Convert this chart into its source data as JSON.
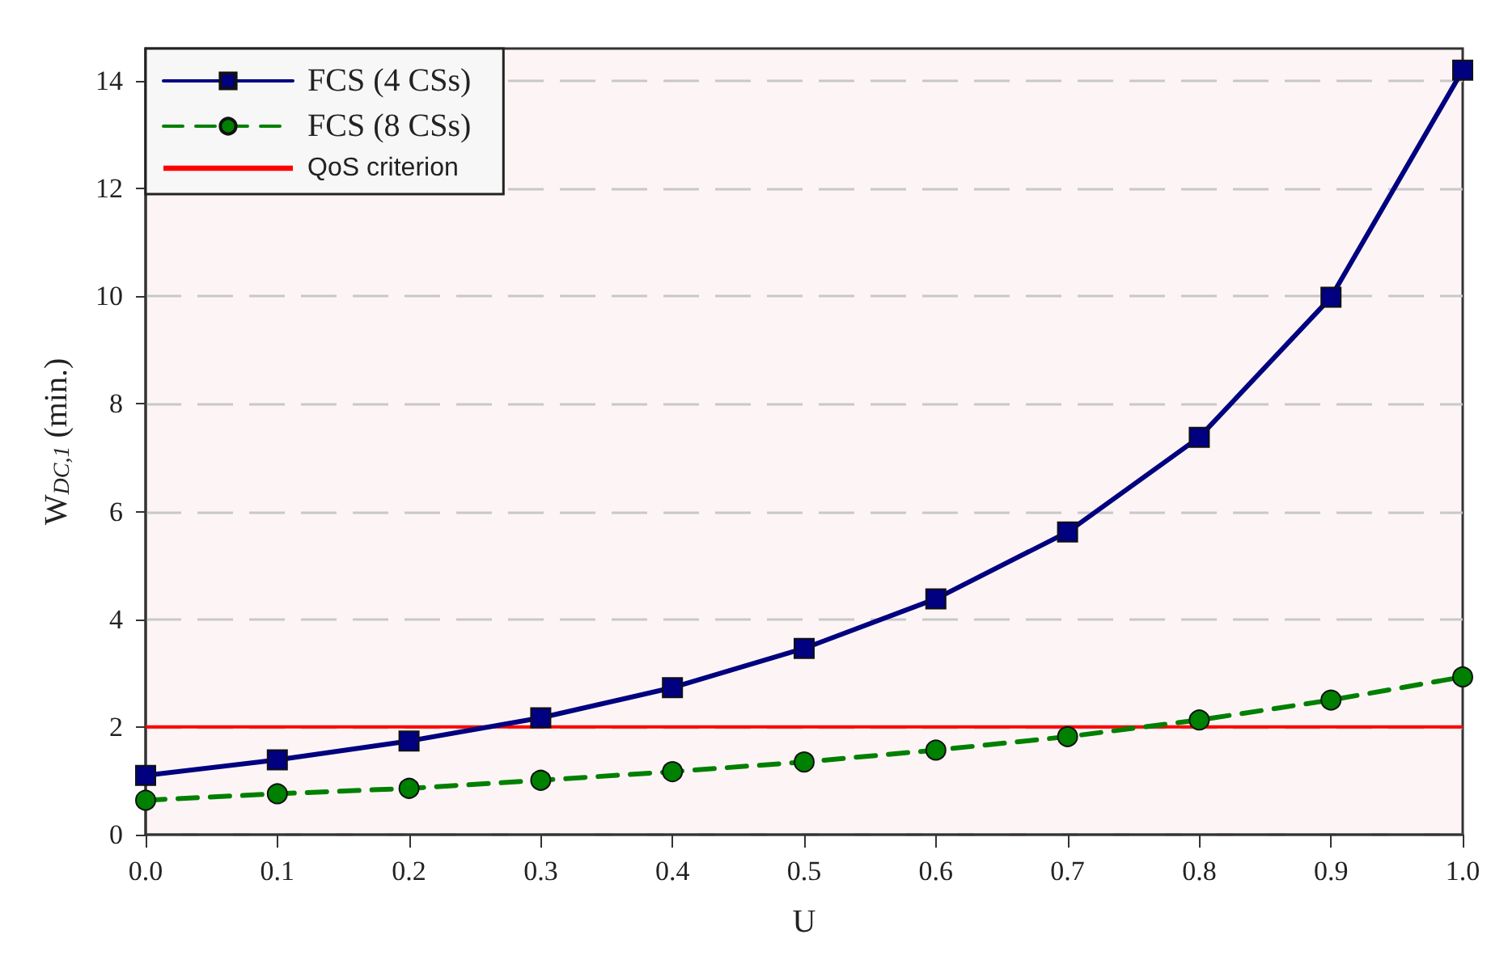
{
  "chart_data": {
    "type": "line",
    "xlabel": "U",
    "ylabel": "W$_{DC,1}$ (min.)",
    "x": [
      0,
      0.1,
      0.2,
      0.3,
      0.4,
      0.5,
      0.6,
      0.7,
      0.8,
      0.9,
      1.0
    ],
    "series": [
      {
        "name": "FCS (4 CSs)",
        "color": "#000080",
        "marker": "square",
        "line_style": "solid",
        "values": [
          1.1,
          1.39,
          1.74,
          2.17,
          2.73,
          3.46,
          4.38,
          5.62,
          7.38,
          9.98,
          14.2
        ]
      },
      {
        "name": "FCS (8 CSs)",
        "color": "#008000",
        "marker": "circle",
        "line_style": "dashed",
        "values": [
          0.64,
          0.76,
          0.86,
          1.01,
          1.17,
          1.35,
          1.57,
          1.82,
          2.13,
          2.5,
          2.93
        ]
      }
    ],
    "ref_lines": [
      {
        "axis": "y",
        "value": 2,
        "label": "QoS criterion",
        "color": "#ff0000"
      }
    ],
    "xlim": [
      0,
      1.0
    ],
    "xticks": [
      {
        "value": 0,
        "label": "0.0"
      },
      {
        "value": 0.1,
        "label": "0.1"
      },
      {
        "value": 0.2,
        "label": "0.2"
      },
      {
        "value": 0.3,
        "label": "0.3"
      },
      {
        "value": 0.4,
        "label": "0.4"
      },
      {
        "value": 0.5,
        "label": "0.5"
      },
      {
        "value": 0.6,
        "label": "0.6"
      },
      {
        "value": 0.7,
        "label": "0.7"
      },
      {
        "value": 0.8,
        "label": "0.8"
      },
      {
        "value": 0.9,
        "label": "0.9"
      },
      {
        "value": 1.0,
        "label": "1.0"
      }
    ],
    "ylim": [
      0,
      14.6
    ],
    "yticks": [
      0,
      2,
      4,
      6,
      8,
      10,
      12,
      14
    ],
    "grid": "y",
    "legend": "top left"
  }
}
